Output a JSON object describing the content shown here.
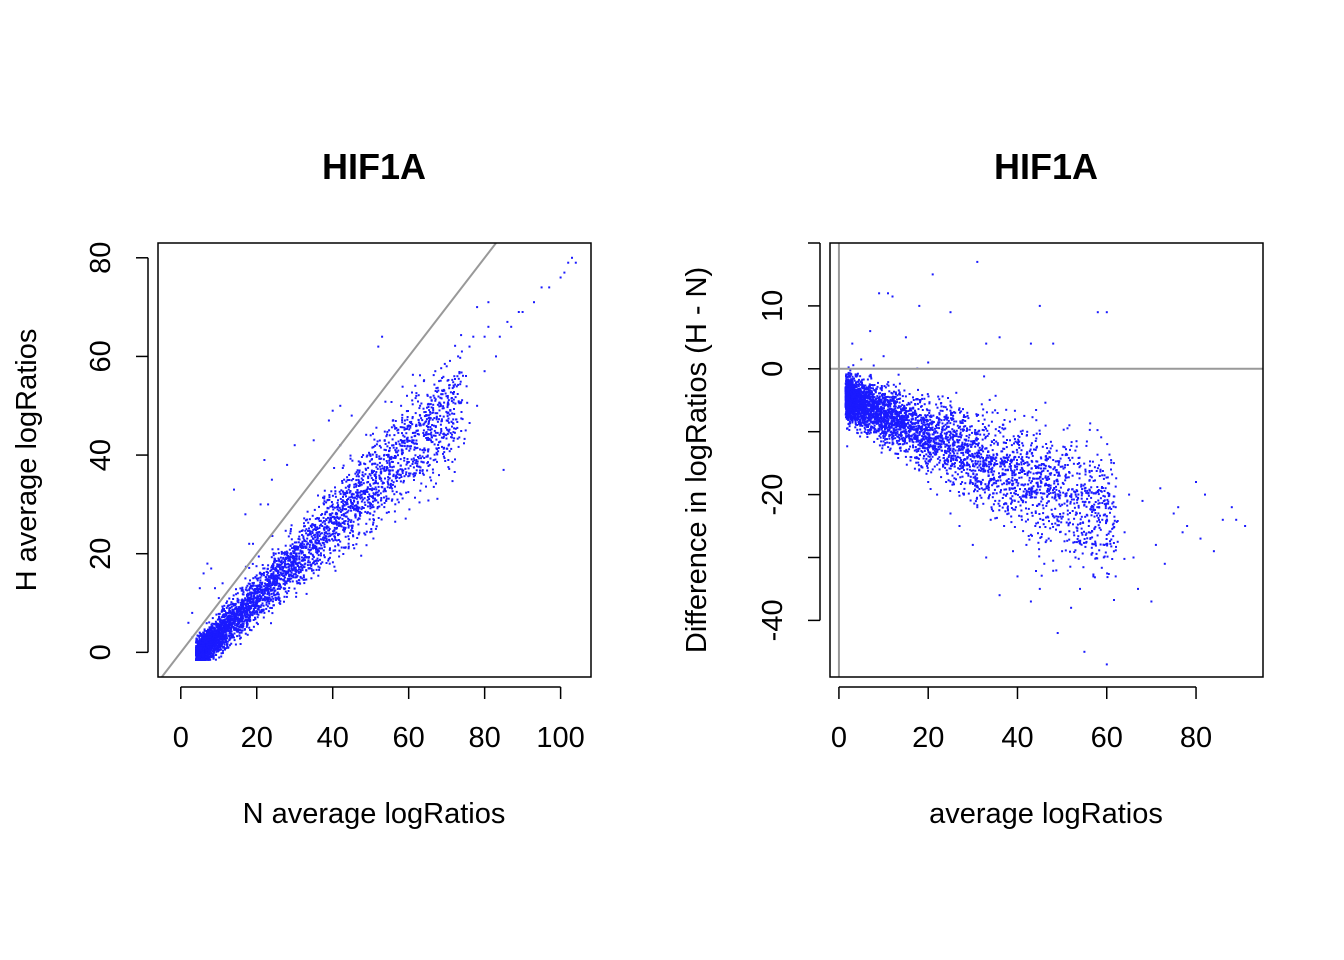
{
  "colors": {
    "points": "#1a1aff",
    "reference_line": "#999999",
    "frame": "#000000",
    "background": "#ffffff"
  },
  "chart_data": [
    {
      "type": "scatter",
      "title": "HIF1A",
      "xlabel": "N average logRatios",
      "ylabel": "H average logRatios",
      "xlim": [
        -6,
        108
      ],
      "ylim": [
        -5,
        83
      ],
      "xticks": [
        0,
        20,
        40,
        60,
        80,
        100
      ],
      "yticks": [
        0,
        20,
        40,
        60,
        80
      ],
      "grid": false,
      "legend": "none",
      "reference_line": {
        "kind": "diagonal",
        "intercept": 0,
        "slope": 1
      },
      "points_summary": {
        "n_points": 4500,
        "bulk_range_x": [
          4,
          20
        ],
        "bulk_range_y": [
          0,
          10
        ],
        "trend": "H ≈ 0.75·N − 4 with spread growing along x"
      },
      "points": [
        [
          102,
          79
        ],
        [
          103,
          80
        ],
        [
          104,
          79
        ],
        [
          101,
          77
        ],
        [
          100,
          76
        ],
        [
          97,
          74
        ],
        [
          95,
          74
        ],
        [
          93,
          71
        ],
        [
          90,
          69
        ],
        [
          89,
          69
        ],
        [
          86,
          67
        ],
        [
          87,
          66
        ],
        [
          84,
          64
        ],
        [
          80,
          64
        ],
        [
          81,
          71
        ],
        [
          81,
          66
        ],
        [
          76,
          62
        ],
        [
          74,
          61
        ],
        [
          73,
          60
        ],
        [
          70,
          58
        ],
        [
          72,
          56
        ],
        [
          68,
          55
        ],
        [
          67,
          57
        ],
        [
          65,
          52
        ],
        [
          53,
          64
        ],
        [
          52,
          62
        ],
        [
          42,
          50
        ],
        [
          40,
          49
        ],
        [
          39,
          47
        ],
        [
          35,
          43
        ],
        [
          30,
          42
        ],
        [
          28,
          38
        ],
        [
          22,
          39
        ],
        [
          24,
          35
        ],
        [
          21,
          30
        ],
        [
          23,
          30
        ],
        [
          14,
          33
        ],
        [
          17,
          28
        ],
        [
          18,
          22
        ],
        [
          19,
          22
        ],
        [
          42,
          42
        ],
        [
          45,
          48
        ],
        [
          48,
          40
        ],
        [
          50,
          44
        ],
        [
          55,
          38
        ],
        [
          58,
          50
        ],
        [
          60,
          46
        ],
        [
          62,
          52
        ],
        [
          66,
          44
        ],
        [
          70,
          47
        ],
        [
          75,
          45
        ],
        [
          78,
          50
        ],
        [
          80,
          57
        ],
        [
          83,
          60
        ],
        [
          85,
          37
        ],
        [
          78,
          70
        ],
        [
          77,
          64
        ],
        [
          64,
          55
        ],
        [
          63,
          50
        ],
        [
          57,
          45
        ],
        [
          55,
          44
        ],
        [
          48,
          31
        ],
        [
          46,
          28
        ],
        [
          50,
          30
        ],
        [
          44,
          26
        ],
        [
          40,
          24
        ],
        [
          36,
          19
        ],
        [
          32,
          15
        ],
        [
          30,
          17
        ],
        [
          28,
          12
        ],
        [
          26,
          10
        ],
        [
          24,
          9
        ],
        [
          22,
          8
        ],
        [
          20,
          6
        ],
        [
          18,
          5
        ],
        [
          16,
          4
        ],
        [
          14,
          3
        ],
        [
          12,
          2
        ],
        [
          10,
          1
        ],
        [
          8,
          0.5
        ],
        [
          6,
          0
        ],
        [
          5,
          1
        ],
        [
          4,
          2
        ],
        [
          3,
          3
        ],
        [
          2,
          6
        ],
        [
          3,
          8
        ],
        [
          5,
          13
        ],
        [
          6,
          16
        ],
        [
          7,
          18
        ],
        [
          8,
          17
        ],
        [
          9,
          13
        ],
        [
          10,
          11
        ],
        [
          11,
          14
        ],
        [
          12,
          10
        ],
        [
          13,
          9
        ],
        [
          15,
          12
        ],
        [
          17,
          15
        ],
        [
          19,
          14
        ],
        [
          21,
          16
        ],
        [
          25,
          20
        ],
        [
          27,
          19
        ],
        [
          29,
          25
        ],
        [
          31,
          23
        ],
        [
          34,
          27
        ],
        [
          36,
          25
        ],
        [
          38,
          28
        ],
        [
          40,
          30
        ],
        [
          43,
          35
        ],
        [
          45,
          32
        ],
        [
          47,
          38
        ],
        [
          49,
          33
        ],
        [
          51,
          36
        ],
        [
          54,
          41
        ],
        [
          56,
          42
        ],
        [
          59,
          47
        ],
        [
          61,
          43
        ],
        [
          63,
          48
        ],
        [
          67,
          51
        ],
        [
          69,
          53
        ],
        [
          71,
          49
        ]
      ]
    },
    {
      "type": "scatter",
      "title": "HIF1A",
      "xlabel": "average logRatios",
      "ylabel": "Difference in logRatios (H - N)",
      "xlim": [
        -2,
        95
      ],
      "ylim": [
        -49,
        20
      ],
      "xticks": [
        0,
        20,
        40,
        60,
        80
      ],
      "yticks": [
        -40,
        -20,
        0,
        10
      ],
      "yticks_unlabeled": [
        -30,
        -10,
        20
      ],
      "grid": false,
      "legend": "none",
      "reference_lines": [
        {
          "kind": "horizontal",
          "y": 0
        },
        {
          "kind": "vertical",
          "x": 0
        }
      ],
      "points_summary": {
        "n_points": 4500,
        "bulk_range_x": [
          2,
          12
        ],
        "bulk_range_y": [
          -14,
          0
        ],
        "trend": "difference decreases with average, roughly −4 − 0.3·A"
      },
      "points": [
        [
          24,
          21
        ],
        [
          21,
          15
        ],
        [
          31,
          17
        ],
        [
          45,
          10
        ],
        [
          58,
          9
        ],
        [
          60,
          9
        ],
        [
          11,
          12
        ],
        [
          12,
          11.5
        ],
        [
          9,
          12
        ],
        [
          18,
          10
        ],
        [
          25,
          9
        ],
        [
          33,
          4
        ],
        [
          36,
          5
        ],
        [
          48,
          4
        ],
        [
          43,
          4
        ],
        [
          3,
          4
        ],
        [
          7,
          6
        ],
        [
          15,
          5
        ],
        [
          20,
          1
        ],
        [
          10,
          2
        ],
        [
          5,
          1.5
        ],
        [
          86,
          -24
        ],
        [
          89,
          -24
        ],
        [
          91,
          -25
        ],
        [
          88,
          -22
        ],
        [
          82,
          -20
        ],
        [
          80,
          -18
        ],
        [
          76,
          -22
        ],
        [
          77,
          -26
        ],
        [
          71,
          -28
        ],
        [
          73,
          -31
        ],
        [
          67,
          -35
        ],
        [
          70,
          -37
        ],
        [
          62,
          -33
        ],
        [
          60,
          -47
        ],
        [
          55,
          -45
        ],
        [
          49,
          -42
        ],
        [
          52,
          -38
        ],
        [
          45,
          -35
        ],
        [
          43,
          -37
        ],
        [
          40,
          -33
        ],
        [
          36,
          -36
        ],
        [
          33,
          -30
        ],
        [
          30,
          -28
        ],
        [
          27,
          -25
        ],
        [
          25,
          -23
        ],
        [
          22,
          -20
        ],
        [
          20,
          -18
        ],
        [
          18,
          -16
        ],
        [
          15,
          -14
        ],
        [
          12,
          -12
        ],
        [
          10,
          -11
        ],
        [
          8,
          -10
        ],
        [
          6,
          -9
        ],
        [
          4,
          -8
        ],
        [
          3,
          -6
        ],
        [
          2,
          -4
        ],
        [
          1.5,
          -3
        ],
        [
          5,
          -2
        ],
        [
          7,
          -3
        ],
        [
          9,
          -5
        ],
        [
          11,
          -6
        ],
        [
          13,
          -8
        ],
        [
          16,
          -9
        ],
        [
          19,
          -11
        ],
        [
          23,
          -13
        ],
        [
          26,
          -15
        ],
        [
          29,
          -17
        ],
        [
          32,
          -19
        ],
        [
          35,
          -21
        ],
        [
          38,
          -23
        ],
        [
          41,
          -24
        ],
        [
          44,
          -25
        ],
        [
          47,
          -27
        ],
        [
          50,
          -29
        ],
        [
          53,
          -30
        ],
        [
          56,
          -26
        ],
        [
          59,
          -24
        ],
        [
          62,
          -22
        ],
        [
          65,
          -20
        ],
        [
          68,
          -21
        ],
        [
          72,
          -19
        ],
        [
          75,
          -23
        ],
        [
          78,
          -25
        ],
        [
          81,
          -27
        ],
        [
          84,
          -29
        ],
        [
          66,
          -30
        ],
        [
          64,
          -26
        ],
        [
          57,
          -33
        ],
        [
          54,
          -35
        ],
        [
          46,
          -31
        ],
        [
          42,
          -28
        ],
        [
          39,
          -29
        ],
        [
          37,
          -25
        ],
        [
          34,
          -24
        ],
        [
          31,
          -22
        ],
        [
          28,
          -20
        ],
        [
          24,
          -18
        ],
        [
          21,
          -16
        ],
        [
          17,
          -13
        ]
      ]
    }
  ]
}
